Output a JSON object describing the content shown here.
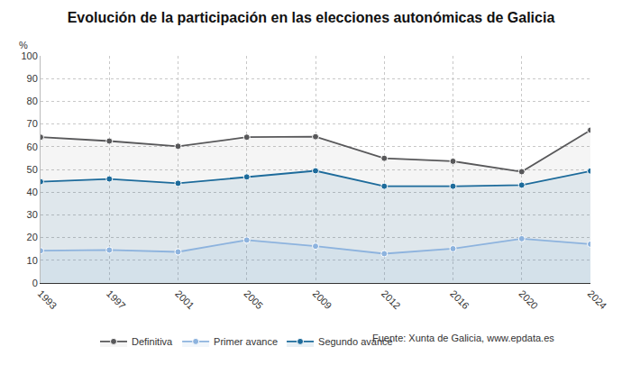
{
  "chart_data": {
    "type": "line",
    "title": "Evolución de la participación en las elecciones autonómicas de Galicia",
    "y_label": "%",
    "source": "Fuente: Xunta de Galicia, www.epdata.es",
    "categories": [
      "1993",
      "1997",
      "2001",
      "2005",
      "2009",
      "2012",
      "2016",
      "2020",
      "2024"
    ],
    "series": [
      {
        "name": "Definitiva",
        "color": "#58585a",
        "values": [
          64.2,
          62.5,
          60.2,
          64.2,
          64.4,
          54.9,
          53.6,
          49.0,
          67.3
        ]
      },
      {
        "name": "Primer avance",
        "color": "#8db3de",
        "values": [
          14.2,
          14.5,
          13.7,
          18.9,
          16.2,
          12.9,
          15.1,
          19.5,
          17.1
        ]
      },
      {
        "name": "Segundo avance",
        "color": "#1d6b9b",
        "values": [
          44.6,
          45.8,
          43.9,
          46.7,
          49.4,
          42.6,
          42.6,
          43.1,
          49.3
        ]
      }
    ],
    "ylim": [
      0,
      100
    ],
    "yticks": [
      0,
      10,
      20,
      30,
      40,
      50,
      60,
      70,
      80,
      90,
      100
    ],
    "grid": true,
    "legend": "bottom",
    "marker": "circle"
  }
}
